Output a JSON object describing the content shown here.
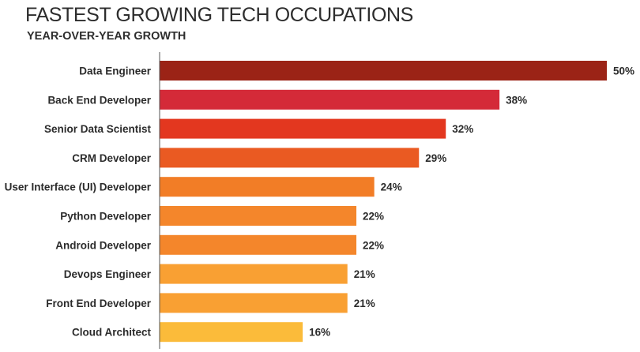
{
  "header": {
    "title": "FASTEST GROWING TECH OCCUPATIONS",
    "subtitle": "YEAR-OVER-YEAR GROWTH"
  },
  "chart_data": {
    "type": "bar",
    "orientation": "horizontal",
    "title": "FASTEST GROWING TECH OCCUPATIONS",
    "subtitle": "YEAR-OVER-YEAR GROWTH",
    "categories": [
      "Data Engineer",
      "Back End Developer",
      "Senior Data Scientist",
      "CRM Developer",
      "User Interface (UI) Developer",
      "Python Developer",
      "Android Developer",
      "Devops Engineer",
      "Front End Developer",
      "Cloud Architect"
    ],
    "values": [
      50,
      38,
      32,
      29,
      24,
      22,
      22,
      21,
      21,
      16
    ],
    "value_labels": [
      "50%",
      "38%",
      "32%",
      "29%",
      "24%",
      "22%",
      "22%",
      "21%",
      "21%",
      "16%"
    ],
    "unit": "%",
    "xlim": [
      0,
      50
    ],
    "grid": false,
    "legend": "none",
    "colors": [
      "#9b2316",
      "#d42a38",
      "#e3371f",
      "#ea5a22",
      "#f27d26",
      "#f4862b",
      "#f4862b",
      "#f9a033",
      "#f9a033",
      "#fbbb3a"
    ],
    "axis_color": "#555555"
  }
}
